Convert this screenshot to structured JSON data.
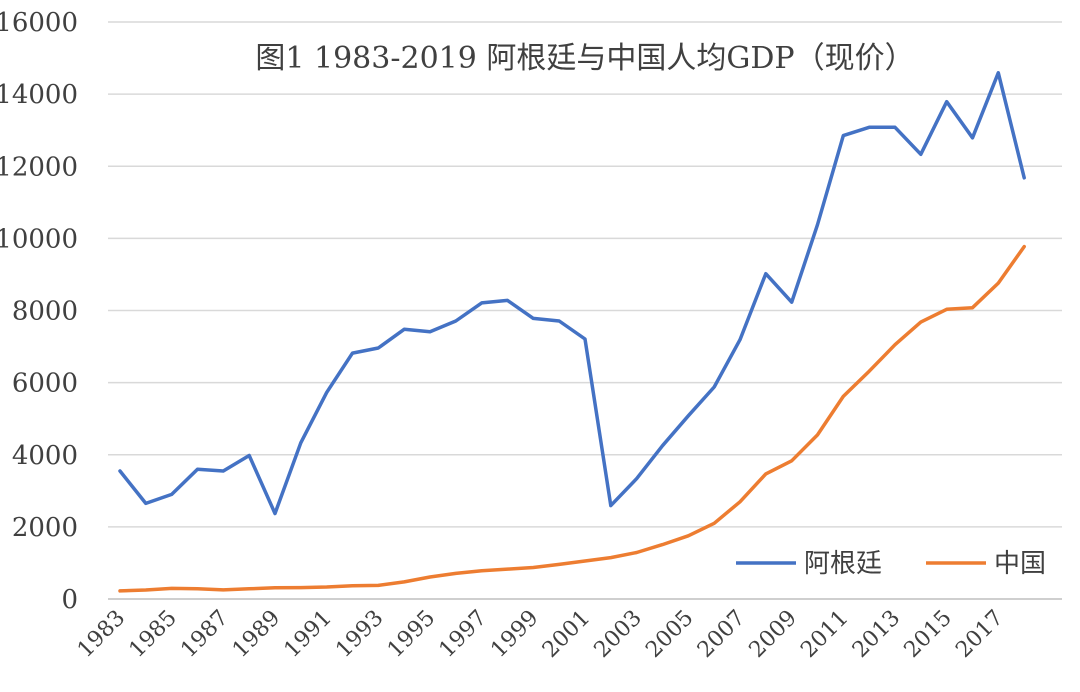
{
  "chart_data": {
    "type": "line",
    "title": "图1  1983-2019 阿根廷与中国人均GDP（现价）",
    "xlabel": "",
    "ylabel": "",
    "ylim": [
      0,
      16000
    ],
    "yticks": [
      0,
      2000,
      4000,
      6000,
      8000,
      10000,
      12000,
      14000,
      16000
    ],
    "xtick_labels": [
      "1983",
      "1985",
      "1987",
      "1989",
      "1991",
      "1993",
      "1995",
      "1997",
      "1999",
      "2001",
      "2003",
      "2005",
      "2007",
      "2009",
      "2011",
      "2013",
      "2015",
      "2017"
    ],
    "x": [
      1983,
      1984,
      1985,
      1986,
      1987,
      1988,
      1989,
      1990,
      1991,
      1992,
      1993,
      1994,
      1995,
      1996,
      1997,
      1998,
      1999,
      2000,
      2001,
      2002,
      2003,
      2004,
      2005,
      2006,
      2007,
      2008,
      2009,
      2010,
      2011,
      2012,
      2013,
      2014,
      2015,
      2016,
      2017,
      2018,
      2019
    ],
    "grid": true,
    "legend_position": "bottom-right",
    "series": [
      {
        "name": "阿根廷",
        "color": "#4472c4",
        "values": [
          3550,
          2650,
          2900,
          3600,
          3550,
          3980,
          2370,
          4330,
          5730,
          6820,
          6960,
          7480,
          7410,
          7710,
          8210,
          8280,
          7780,
          7710,
          7210,
          2590,
          3340,
          4250,
          5080,
          5880,
          7190,
          9020,
          8230,
          10380,
          12850,
          13080,
          13080,
          12330,
          13790,
          12790,
          14590,
          11680,
          null
        ]
      },
      {
        "name": "中国",
        "color": "#ed7d31",
        "values": [
          225,
          250,
          294,
          282,
          251,
          283,
          311,
          317,
          333,
          366,
          377,
          473,
          610,
          709,
          782,
          829,
          873,
          959,
          1053,
          1149,
          1289,
          1509,
          1753,
          2099,
          2694,
          3468,
          3832,
          4550,
          5618,
          6317,
          7051,
          7679,
          8033,
          8079,
          8760,
          9771,
          null
        ]
      }
    ]
  }
}
